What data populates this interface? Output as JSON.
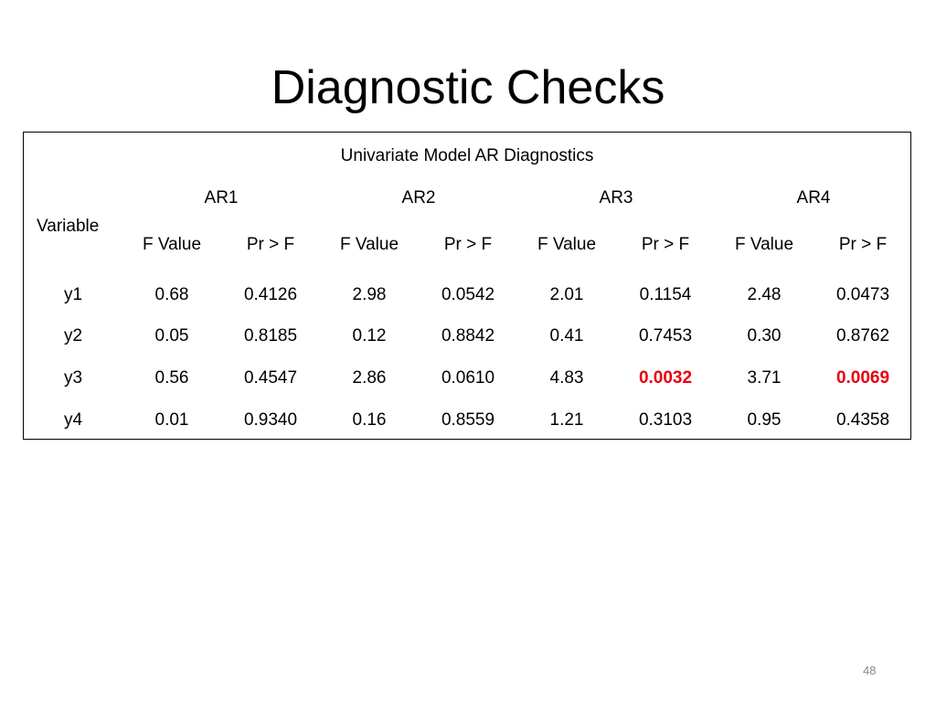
{
  "slide": {
    "title": "Diagnostic Checks",
    "page_number": "48"
  },
  "table": {
    "caption": "Univariate Model AR Diagnostics",
    "row_header": "Variable",
    "groups": [
      "AR1",
      "AR2",
      "AR3",
      "AR4"
    ],
    "sub_columns": [
      "F Value",
      "Pr > F",
      "F Value",
      "Pr > F",
      "F Value",
      "Pr > F",
      "F Value",
      "Pr > F"
    ],
    "rows": [
      {
        "variable": "y1",
        "values": [
          "0.68",
          "0.4126",
          "2.98",
          "0.0542",
          "2.01",
          "0.1154",
          "2.48",
          "0.0473"
        ],
        "highlight": [
          false,
          false,
          false,
          false,
          false,
          false,
          false,
          false
        ]
      },
      {
        "variable": "y2",
        "values": [
          "0.05",
          "0.8185",
          "0.12",
          "0.8842",
          "0.41",
          "0.7453",
          "0.30",
          "0.8762"
        ],
        "highlight": [
          false,
          false,
          false,
          false,
          false,
          false,
          false,
          false
        ]
      },
      {
        "variable": "y3",
        "values": [
          "0.56",
          "0.4547",
          "2.86",
          "0.0610",
          "4.83",
          "0.0032",
          "3.71",
          "0.0069"
        ],
        "highlight": [
          false,
          false,
          false,
          false,
          false,
          true,
          false,
          true
        ]
      },
      {
        "variable": "y4",
        "values": [
          "0.01",
          "0.9340",
          "0.16",
          "0.8559",
          "1.21",
          "0.3103",
          "0.95",
          "0.4358"
        ],
        "highlight": [
          false,
          false,
          false,
          false,
          false,
          false,
          false,
          false
        ]
      }
    ],
    "highlight_color": "#e8000d"
  }
}
